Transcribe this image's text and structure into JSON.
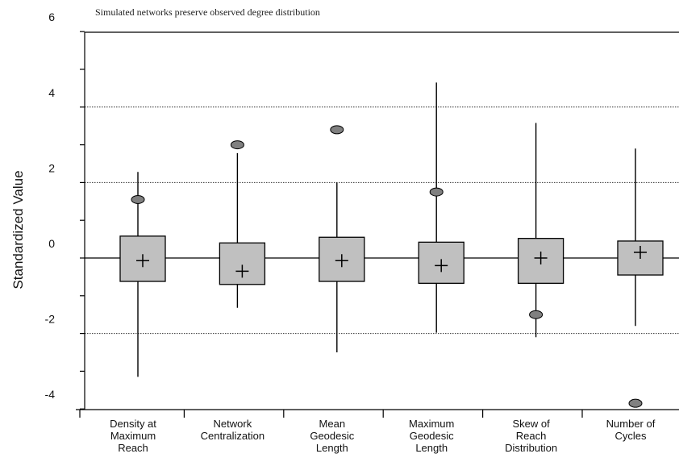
{
  "chart_data": {
    "type": "boxplot",
    "title": "Simulated networks preserve observed degree distribution",
    "ylabel": "Standardized Value",
    "xlabel": "",
    "ylim": [
      -4.1,
      6
    ],
    "yticks": [
      -4,
      -2,
      0,
      2,
      4,
      6
    ],
    "ytick_labels": [
      "-4",
      "-2",
      "0",
      "2",
      "4",
      "6"
    ],
    "gridlines_y": [
      -2,
      2,
      4
    ],
    "reference_line_y": 0,
    "colors": {
      "box_fill": "#c0c0c0",
      "box_stroke": "#000000",
      "observed_marker": "#808080",
      "gridline": "#333333"
    },
    "categories": [
      {
        "label_lines": [
          "Density at",
          "Maximum",
          "Reach"
        ],
        "whisker_low": -3.15,
        "q1": -0.62,
        "q3": 0.58,
        "mean": -0.07,
        "whisker_high": 2.28,
        "observed": 1.55
      },
      {
        "label_lines": [
          "Network",
          "Centralization"
        ],
        "whisker_low": -1.32,
        "q1": -0.7,
        "q3": 0.4,
        "mean": -0.35,
        "whisker_high": 2.78,
        "observed": 3.0
      },
      {
        "label_lines": [
          "Mean",
          "Geodesic",
          "Length"
        ],
        "whisker_low": -2.5,
        "q1": -0.62,
        "q3": 0.55,
        "mean": -0.07,
        "whisker_high": 2.0,
        "observed": 3.4
      },
      {
        "label_lines": [
          "Maximum",
          "Geodesic",
          "Length"
        ],
        "whisker_low": -1.98,
        "q1": -0.67,
        "q3": 0.42,
        "mean": -0.2,
        "whisker_high": 4.65,
        "observed": 1.75
      },
      {
        "label_lines": [
          "Skew of",
          "Reach",
          "Distribution"
        ],
        "whisker_low": -2.1,
        "q1": -0.67,
        "q3": 0.52,
        "mean": 0.0,
        "whisker_high": 3.58,
        "observed": -1.5
      },
      {
        "label_lines": [
          "Number of",
          "Cycles"
        ],
        "whisker_low": -1.8,
        "q1": -0.45,
        "q3": 0.45,
        "mean": 0.15,
        "whisker_high": 2.9,
        "observed": -3.85
      }
    ]
  }
}
